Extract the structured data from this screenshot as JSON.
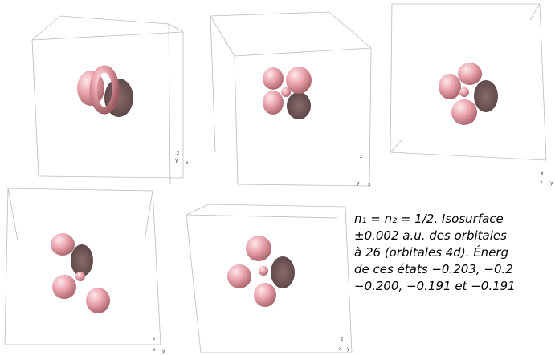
{
  "panels": [
    {
      "axes": [
        "z",
        "y",
        "x"
      ]
    },
    {
      "axes": [
        "z",
        "y",
        "x"
      ]
    },
    {
      "axes": [
        "x",
        "z",
        "y"
      ]
    },
    {
      "axes": [
        "z",
        "x",
        "y"
      ]
    },
    {
      "axes": [
        "z",
        "x",
        "y"
      ]
    }
  ],
  "caption": {
    "lines": [
      "n₁ = n₂ = 1/2. Isosurface",
      "±0.002 a.u. des orbitales",
      "à 26 (orbitales 4d). Énerg",
      "de ces états −0.203, −0.2",
      "−0.200, −0.191 et −0.191"
    ]
  }
}
